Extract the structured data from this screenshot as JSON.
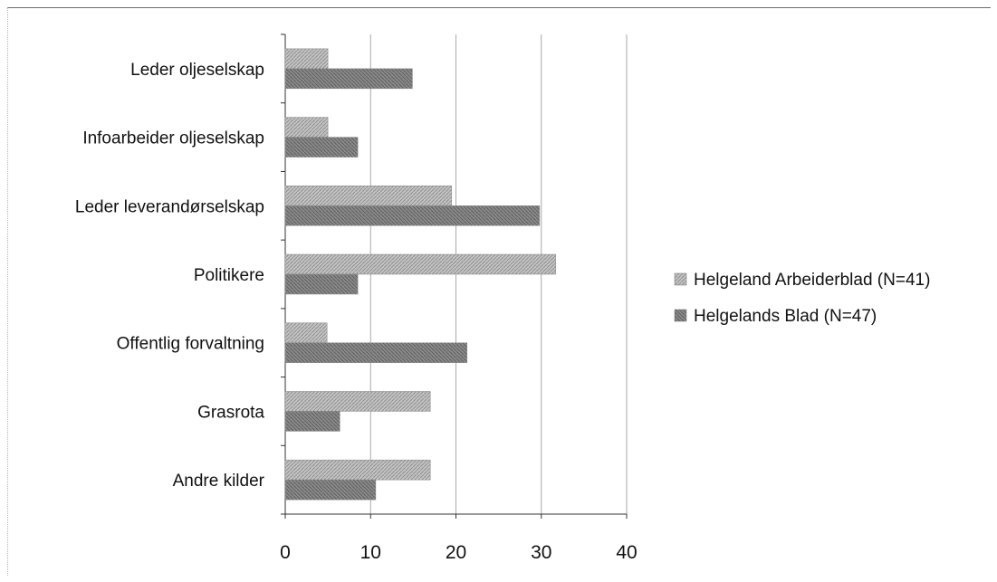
{
  "chart_data": {
    "type": "bar",
    "orientation": "horizontal",
    "title": "",
    "xlabel": "",
    "ylabel": "",
    "categories": [
      "Leder oljeselskap",
      "Infoarbeider oljeselskap",
      "Leder leverandørselskap",
      "Politikere",
      "Offentlig forvaltning",
      "Grasrota",
      "Andre kilder"
    ],
    "series": [
      {
        "name": "Helgeland Arbeiderblad (N=41)",
        "values": [
          5,
          5,
          19.5,
          31.7,
          4.9,
          17,
          17
        ],
        "color": "#b4b4b4"
      },
      {
        "name": "Helgelands Blad (N=47)",
        "values": [
          14.9,
          8.5,
          29.8,
          8.5,
          21.3,
          6.4,
          10.6
        ],
        "color": "#9e9e9e"
      }
    ],
    "xlim": [
      0,
      40
    ],
    "xticks": [
      "0",
      "10",
      "20",
      "30",
      "40"
    ],
    "grid": true,
    "legend_position": "right"
  }
}
